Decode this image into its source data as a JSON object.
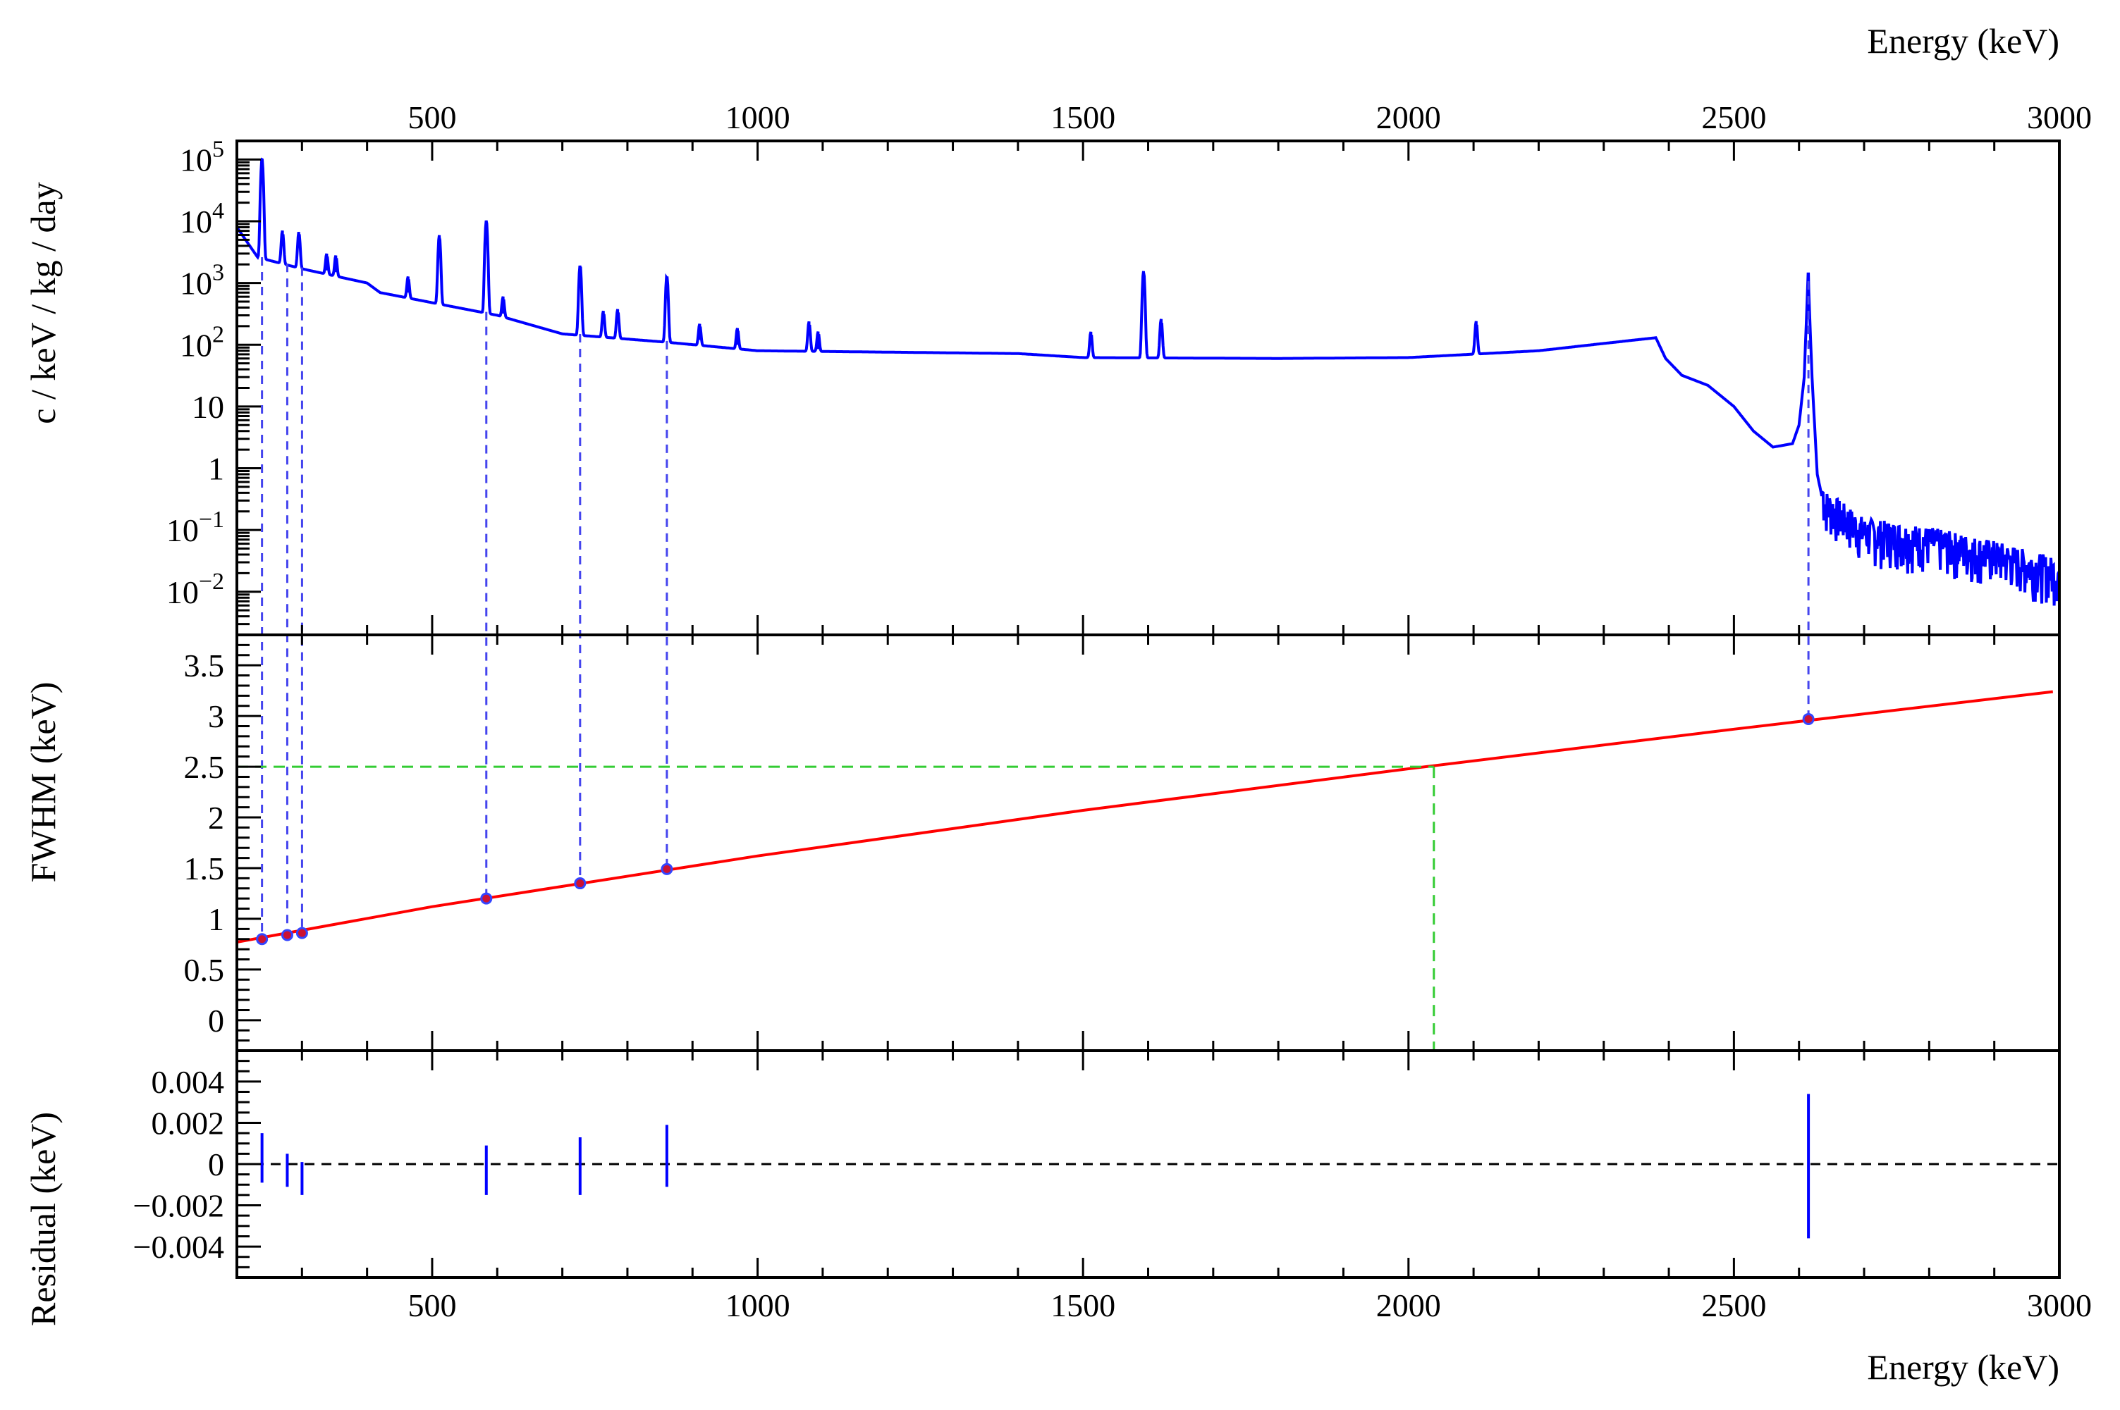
{
  "chart_data": [
    {
      "type": "line",
      "panel": "spectrum",
      "ylabel": "c / keV / kg / day",
      "xlabel_top": "Energy (keV)",
      "xlim": [
        200,
        3000
      ],
      "ylim": [
        0.002,
        200000
      ],
      "yscale": "log",
      "y_tick_labels": [
        "10^-2",
        "10^-1",
        "1",
        "10",
        "10^2",
        "10^3",
        "10^4",
        "10^5"
      ],
      "x_tick_labels": [
        "500",
        "1000",
        "1500",
        "2000",
        "2500",
        "3000"
      ],
      "series": [
        {
          "color": "#0000ff",
          "continuum": [
            [
              200,
              8000
            ],
            [
              232,
              2600
            ],
            [
              300,
              1700
            ],
            [
              400,
              1000
            ],
            [
              420,
              700
            ],
            [
              500,
              480
            ],
            [
              600,
              300
            ],
            [
              700,
              150
            ],
            [
              860,
              110
            ],
            [
              1000,
              80
            ],
            [
              1400,
              72
            ],
            [
              1500,
              62
            ],
            [
              1800,
              60
            ],
            [
              2000,
              62
            ],
            [
              2200,
              80
            ],
            [
              2300,
              105
            ],
            [
              2380,
              130
            ],
            [
              2395,
              60
            ],
            [
              2420,
              32
            ],
            [
              2460,
              22
            ],
            [
              2500,
              10
            ],
            [
              2530,
              4
            ],
            [
              2560,
              2.2
            ],
            [
              2590,
              2.5
            ],
            [
              2600,
              5
            ],
            [
              2608,
              30
            ],
            [
              2614,
              1400
            ],
            [
              2620,
              30
            ],
            [
              2628,
              0.8
            ],
            [
              2640,
              0.2
            ],
            [
              2700,
              0.07
            ],
            [
              2800,
              0.05
            ],
            [
              2900,
              0.03
            ],
            [
              3000,
              0.015
            ]
          ],
          "peaks": [
            [
              238.6,
              100000
            ],
            [
              270,
              5000
            ],
            [
              295.2,
              5000
            ],
            [
              338,
              1600
            ],
            [
              352,
              1500
            ],
            [
              463,
              700
            ],
            [
              511,
              5500
            ],
            [
              583.2,
              10000
            ],
            [
              609,
              320
            ],
            [
              727.3,
              1800
            ],
            [
              763,
              220
            ],
            [
              785,
              250
            ],
            [
              860.6,
              1200
            ],
            [
              911,
              120
            ],
            [
              969,
              100
            ],
            [
              1079,
              160
            ],
            [
              1093,
              85
            ],
            [
              1512,
              100
            ],
            [
              1593,
              1500
            ],
            [
              1620,
              200
            ],
            [
              2104,
              170
            ],
            [
              2614.5,
              1400
            ]
          ]
        }
      ]
    },
    {
      "type": "scatter",
      "panel": "fwhm",
      "ylabel": "FWHM (keV)",
      "xlim": [
        200,
        3000
      ],
      "ylim": [
        -0.3,
        3.8
      ],
      "y_tick_labels": [
        "0",
        "0.5",
        "1",
        "1.5",
        "2",
        "2.5",
        "3",
        "3.5"
      ],
      "points": {
        "x": [
          238.6,
          277.4,
          300.1,
          583.2,
          727.3,
          860.6,
          2614.5
        ],
        "y": [
          0.8,
          0.84,
          0.86,
          1.2,
          1.35,
          1.49,
          2.97
        ]
      },
      "fit": {
        "color": "#ff0000",
        "x": [
          200,
          500,
          1000,
          1500,
          2000,
          2500,
          2990
        ],
        "y": [
          0.77,
          1.12,
          1.62,
          2.07,
          2.48,
          2.87,
          3.24
        ]
      },
      "reference": {
        "color": "#33cc33",
        "x": 2039,
        "y": 2.5
      },
      "markers": {
        "x": [
          238.6,
          277.4,
          300.1,
          583.2,
          727.3,
          860.6,
          2614.5
        ]
      }
    },
    {
      "type": "scatter",
      "panel": "residual",
      "ylabel": "Residual (keV)",
      "xlabel": "Energy (keV)",
      "xlim": [
        200,
        3000
      ],
      "ylim": [
        -0.0055,
        0.0055
      ],
      "y_tick_labels": [
        "−0.004",
        "−0.002",
        "0",
        "0.002",
        "0.004"
      ],
      "x_tick_labels": [
        "500",
        "1000",
        "1500",
        "2000",
        "2500",
        "3000"
      ],
      "points": {
        "x": [
          238.6,
          277.4,
          300.1,
          583.2,
          727.3,
          860.6,
          2614.5
        ],
        "y": [
          0.0003,
          -0.0003,
          -0.0007,
          -0.0003,
          -0.0001,
          0.0004,
          -0.0001
        ],
        "err": [
          0.0012,
          0.0008,
          0.0008,
          0.0012,
          0.0014,
          0.0015,
          0.0035
        ]
      }
    }
  ]
}
